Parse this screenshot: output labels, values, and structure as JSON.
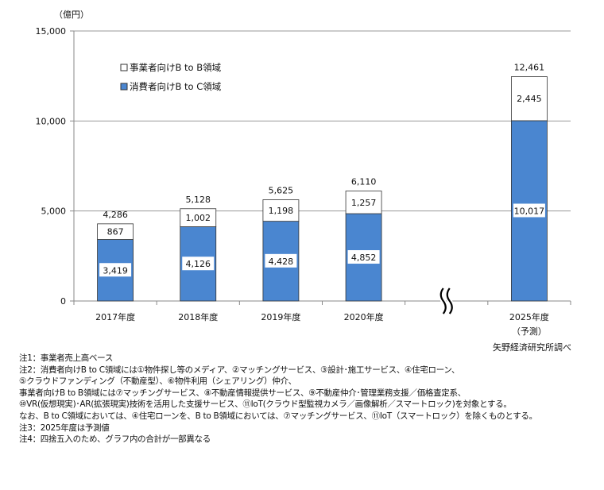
{
  "chart_data": {
    "type": "bar",
    "stacked": true,
    "unit_label": "（億円）",
    "categories": [
      "2017年度",
      "2018年度",
      "2019年度",
      "2020年度",
      "",
      "2025年度"
    ],
    "category_sublabels": [
      "",
      "",
      "",
      "",
      "",
      "（予測）"
    ],
    "series": [
      {
        "name": "消費者向けB to C領域",
        "color": "#4a86d0",
        "values": [
          3419,
          4126,
          4428,
          4852,
          null,
          10017
        ]
      },
      {
        "name": "事業者向けB to B領域",
        "color": "#ffffff",
        "values": [
          867,
          1002,
          1198,
          1257,
          null,
          2445
        ]
      }
    ],
    "totals": [
      4286,
      5128,
      5625,
      6110,
      null,
      12461
    ],
    "total_labels": [
      "4,286",
      "5,128",
      "5,625",
      "6,110",
      "",
      "12,461"
    ],
    "btoc_labels": [
      "3,419",
      "4,126",
      "4,428",
      "4,852",
      "",
      "10,017"
    ],
    "btob_labels": [
      "867",
      "1,002",
      "1,198",
      "1,257",
      "",
      "2,445"
    ],
    "ylim": [
      0,
      15000
    ],
    "yticks": [
      0,
      5000,
      10000,
      15000
    ],
    "ytick_labels": [
      "0",
      "5,000",
      "10,000",
      "15,000"
    ],
    "grid": true,
    "axis_break_after_category": 3,
    "legend_placement": "top-left",
    "legend": [
      "事業者向けB to B領域",
      "消費者向けB to C領域"
    ]
  },
  "source": "矢野経済研究所調べ",
  "notes": [
    "注1：事業者売上高ベース",
    "注2：消費者向けB to C領域には①物件探し等のメディア、②マッチングサービス、③設計･施工サービス、④住宅ローン、",
    "⑤クラウドファンディング（不動産型）、⑥物件利用（シェアリング）仲介、",
    "事業者向けB to B領域には⑦マッチングサービス、⑧不動産情報提供サービス、⑨不動産仲介･管理業務支援／価格査定系、",
    "⑩VR(仮想現実)･AR(拡張現実)技術を活用した支援サービス、⑪IoT(クラウド型監視カメラ／画像解析／スマートロック)を対象とする。",
    "なお、B to C領域においては、④住宅ローンを、B to B領域においては、⑦マッチングサービス、⑪IoT（スマートロック）を除くものとする。",
    "注3：2025年度は予測値",
    "注4：四捨五入のため、グラフ内の合計が一部異なる"
  ]
}
